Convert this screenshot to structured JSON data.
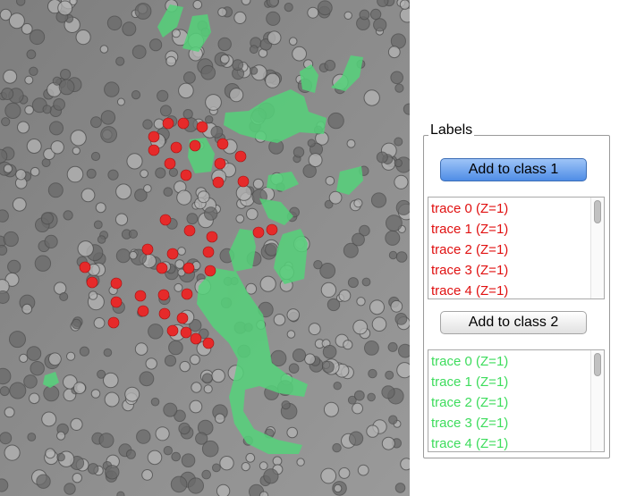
{
  "labels_panel": {
    "title": "Labels",
    "add_class1_label": "Add to class 1",
    "add_class2_label": "Add to class 2",
    "class1_color": "#e01010",
    "class2_color": "#3ddc5c",
    "class1_items": [
      "trace 0 (Z=1)",
      "trace 1 (Z=1)",
      "trace 2 (Z=1)",
      "trace 3 (Z=1)",
      "trace 4 (Z=1)"
    ],
    "class2_items": [
      "trace 0 (Z=1)",
      "trace 1 (Z=1)",
      "trace 2 (Z=1)",
      "trace 3 (Z=1)",
      "trace 4 (Z=1)"
    ]
  },
  "image": {
    "description_icon": "microscopy-cell-image",
    "red_marker_color": "#e62a2a",
    "green_region_color": "#55d27a"
  }
}
